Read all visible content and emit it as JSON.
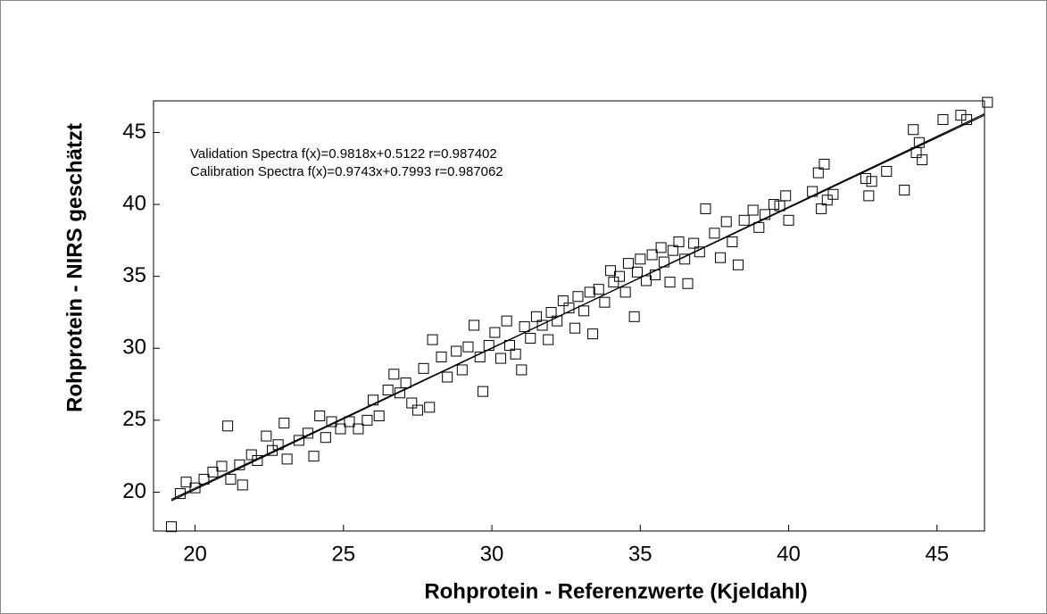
{
  "chart_data": {
    "type": "scatter",
    "xlabel": "Rohprotein - Referenzwerte (Kjeldahl)",
    "ylabel": "Rohprotein - NIRS geschätzt",
    "annotations": [
      "Validation Spectra f(x)=0.9818x+0.5122  r=0.987402",
      "Calibration Spectra f(x)=0.9743x+0.7993  r=0.987062"
    ],
    "xlim": [
      18.6,
      46.6
    ],
    "ylim": [
      17.3,
      47.2
    ],
    "xticks": [
      20,
      25,
      30,
      35,
      40,
      45
    ],
    "yticks": [
      20,
      25,
      30,
      35,
      40,
      45
    ],
    "color": "#000000",
    "x": [
      19.2,
      19.5,
      19.7,
      20.0,
      20.3,
      20.6,
      20.9,
      21.1,
      21.2,
      21.5,
      21.6,
      21.9,
      22.1,
      22.4,
      22.6,
      22.8,
      23.0,
      23.1,
      23.5,
      23.8,
      24.0,
      24.2,
      24.4,
      24.6,
      24.9,
      25.2,
      25.5,
      25.8,
      26.0,
      26.2,
      26.5,
      26.7,
      26.9,
      27.1,
      27.3,
      27.5,
      27.7,
      27.9,
      28.0,
      28.3,
      28.5,
      28.8,
      29.0,
      29.2,
      29.4,
      29.6,
      29.7,
      29.9,
      30.1,
      30.3,
      30.5,
      30.6,
      30.8,
      31.0,
      31.1,
      31.3,
      31.5,
      31.7,
      31.9,
      32.0,
      32.2,
      32.4,
      32.6,
      32.8,
      32.9,
      33.1,
      33.3,
      33.4,
      33.6,
      33.8,
      34.0,
      34.1,
      34.3,
      34.5,
      34.6,
      34.8,
      34.9,
      35.0,
      35.2,
      35.4,
      35.5,
      35.7,
      35.8,
      36.0,
      36.1,
      36.3,
      36.5,
      36.6,
      36.8,
      37.0,
      37.2,
      37.5,
      37.7,
      37.9,
      38.1,
      38.3,
      38.5,
      38.8,
      39.0,
      39.2,
      39.5,
      39.7,
      39.9,
      40.0,
      40.8,
      41.0,
      41.1,
      41.2,
      41.3,
      41.5,
      42.6,
      42.7,
      42.8,
      43.3,
      43.9,
      44.2,
      44.3,
      44.4,
      44.5,
      45.2,
      45.8,
      46.0,
      46.7
    ],
    "values": [
      17.6,
      19.9,
      20.7,
      20.3,
      20.9,
      21.4,
      21.8,
      24.6,
      20.9,
      21.9,
      20.5,
      22.6,
      22.2,
      23.9,
      22.9,
      23.3,
      24.8,
      22.3,
      23.6,
      24.1,
      22.5,
      25.3,
      23.8,
      24.9,
      24.4,
      24.9,
      24.4,
      25.0,
      26.4,
      25.3,
      27.1,
      28.2,
      26.9,
      27.6,
      26.2,
      25.7,
      28.6,
      25.9,
      30.6,
      29.4,
      28.0,
      29.8,
      28.5,
      30.1,
      31.6,
      29.4,
      27.0,
      30.2,
      31.1,
      29.3,
      31.9,
      30.2,
      29.6,
      28.5,
      31.5,
      30.7,
      32.2,
      31.6,
      30.6,
      32.5,
      31.9,
      33.3,
      32.8,
      31.4,
      33.6,
      32.6,
      33.9,
      31.0,
      34.1,
      33.2,
      35.4,
      34.6,
      35.0,
      33.9,
      35.9,
      32.2,
      35.3,
      36.2,
      34.7,
      36.5,
      35.1,
      37.0,
      36.0,
      34.6,
      36.8,
      37.4,
      36.2,
      34.5,
      37.3,
      36.7,
      39.7,
      38.0,
      36.3,
      38.8,
      37.4,
      35.8,
      38.9,
      39.6,
      38.4,
      39.3,
      40.0,
      39.9,
      40.6,
      38.9,
      40.9,
      42.2,
      39.7,
      42.8,
      40.3,
      40.7,
      41.8,
      40.6,
      41.6,
      42.3,
      41.0,
      45.2,
      43.6,
      44.3,
      43.1,
      45.9,
      46.2,
      45.9,
      47.1
    ],
    "fit_lines": [
      {
        "x": [
          19.2,
          46.6
        ],
        "values": [
          19.4,
          46.3
        ]
      },
      {
        "x": [
          19.2,
          46.6
        ],
        "values": [
          19.5,
          46.2
        ]
      }
    ]
  }
}
